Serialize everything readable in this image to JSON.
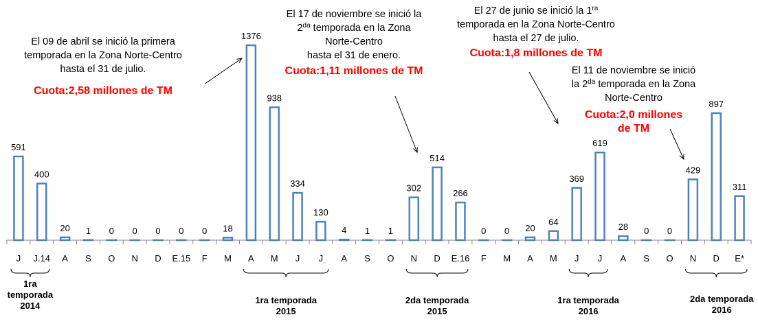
{
  "chart_data": {
    "type": "bar",
    "categories": [
      "J",
      "J.14",
      "A",
      "S",
      "O",
      "N",
      "D",
      "E.15",
      "F",
      "M",
      "A",
      "M",
      "J",
      "J",
      "A",
      "S",
      "O",
      "N",
      "D",
      "E.16",
      "F",
      "M",
      "A",
      "M",
      "J",
      "J",
      "A",
      "S",
      "O",
      "N",
      "D",
      "E*"
    ],
    "values": [
      591,
      400,
      20,
      1,
      0,
      0,
      0,
      0,
      0,
      18,
      1376,
      938,
      334,
      130,
      4,
      1,
      1,
      302,
      514,
      266,
      0,
      0,
      20,
      64,
      369,
      619,
      28,
      0,
      0,
      429,
      897,
      311
    ],
    "color": "#4f81bd",
    "annotations": [
      {
        "lines": [
          [
            "El 09 de abril se inició la primera"
          ],
          [
            "temporada en la Zona  Norte-Centro"
          ],
          [
            "hasta el 31 de julio."
          ]
        ],
        "quota": [
          "Cuota:2,58 millones de TM"
        ]
      },
      {
        "lines": [
          [
            "El 17 de noviembre se inició la"
          ],
          [
            "2",
            "da",
            " temporada en la Zona"
          ],
          [
            "Norte-Centro"
          ],
          [
            "hasta el 31 de enero."
          ]
        ],
        "quota": [
          "Cuota:1,11 millones de TM"
        ]
      },
      {
        "lines": [
          [
            "El 27 de junio se inició la 1",
            "ra"
          ],
          [
            "temporada en la Zona  Norte-Centro"
          ],
          [
            "hasta el 27 de julio."
          ]
        ],
        "quota": [
          "Cuota:1,8 millones de TM"
        ]
      },
      {
        "lines": [
          [
            "El 11 de noviembre se inició"
          ],
          [
            "la 2",
            "da",
            " temporada en la Zona"
          ],
          [
            "Norte-Centro"
          ]
        ],
        "quota": [
          "Cuota:2,0 millones",
          "de TM"
        ]
      }
    ],
    "seasons": [
      {
        "lines": [
          "1ra",
          "temporada",
          "2014"
        ]
      },
      {
        "lines": [
          "1ra temporada",
          "2015"
        ]
      },
      {
        "lines": [
          "2da temporada",
          "2015"
        ]
      },
      {
        "lines": [
          "1ra temporada",
          "2016"
        ]
      },
      {
        "lines": [
          "2da temporada",
          "2016"
        ]
      }
    ]
  }
}
